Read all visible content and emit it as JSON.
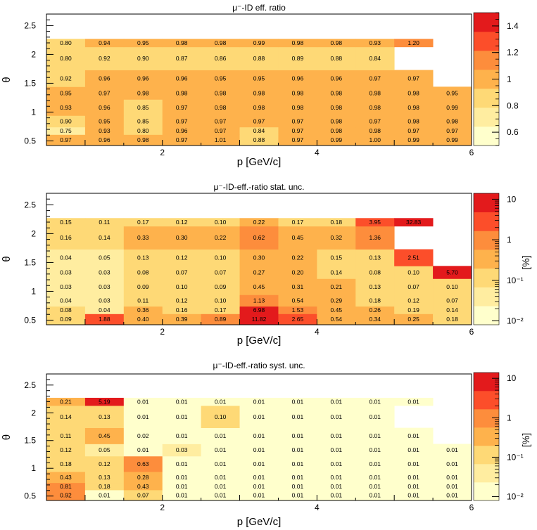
{
  "palette": [
    "#ffffcc",
    "#ffeda0",
    "#fed976",
    "#feb24c",
    "#fd8d3c",
    "#fc4e2a",
    "#e31a1c"
  ],
  "chart_data": [
    {
      "type": "heatmap",
      "title": "μ⁻-ID eff. ratio",
      "xlabel": "p [GeV/c]",
      "ylabel": "θ",
      "xlim": [
        0.5,
        6.0
      ],
      "ylim": [
        0.42,
        2.7
      ],
      "x_edges": [
        0.5,
        1.0,
        1.5,
        2.0,
        2.5,
        3.0,
        3.5,
        4.0,
        4.5,
        5.0,
        5.5,
        6.0
      ],
      "y_edges": [
        0.42,
        0.61,
        0.74,
        0.94,
        1.22,
        1.44,
        1.73,
        2.13,
        2.27,
        2.71
      ],
      "x_ticks": [
        2,
        4,
        6
      ],
      "x_tick_labels": [
        "2",
        "4",
        "6"
      ],
      "y_ticks": [
        0.5,
        1,
        1.5,
        2,
        2.5
      ],
      "y_tick_labels": [
        "0.5",
        "1",
        "1.5",
        "2",
        "2.5"
      ],
      "z_scale": "linear",
      "zlim": [
        0.5,
        1.5
      ],
      "z_ticks": [
        0.6,
        0.8,
        1,
        1.2,
        1.4
      ],
      "z_tick_labels": [
        "0.6",
        "0.8",
        "1",
        "1.2",
        "1.4"
      ],
      "z_unit": "",
      "values": [
        [
          0.97,
          0.96,
          0.98,
          0.97,
          1.01,
          0.88,
          0.97,
          0.99,
          1.0,
          0.99,
          0.99
        ],
        [
          0.75,
          0.93,
          0.8,
          0.96,
          0.97,
          0.84,
          0.97,
          0.98,
          0.98,
          0.97,
          0.97
        ],
        [
          0.9,
          0.95,
          0.85,
          0.97,
          0.97,
          0.97,
          0.97,
          0.98,
          0.97,
          0.98,
          0.98
        ],
        [
          0.93,
          0.96,
          0.85,
          0.97,
          0.98,
          0.98,
          0.98,
          0.98,
          0.98,
          0.98,
          0.99
        ],
        [
          0.95,
          0.97,
          0.98,
          0.98,
          0.98,
          0.98,
          0.98,
          0.98,
          0.98,
          0.98,
          0.95
        ],
        [
          0.92,
          0.96,
          0.96,
          0.96,
          0.95,
          0.95,
          0.96,
          0.96,
          0.97,
          0.97,
          null
        ],
        [
          0.8,
          0.92,
          0.9,
          0.87,
          0.86,
          0.88,
          0.89,
          0.88,
          0.84,
          null,
          null
        ],
        [
          0.8,
          0.94,
          0.95,
          0.98,
          0.98,
          0.99,
          0.98,
          0.98,
          0.93,
          1.2,
          null
        ]
      ],
      "labels": [
        [
          "0.97",
          "0.96",
          "0.98",
          "0.97",
          "1.01",
          "0.88",
          "0.97",
          "0.99",
          "1.00",
          "0.99",
          "0.99"
        ],
        [
          "0.75",
          "0.93",
          "0.80",
          "0.96",
          "0.97",
          "0.84",
          "0.97",
          "0.98",
          "0.98",
          "0.97",
          "0.97"
        ],
        [
          "0.90",
          "0.95",
          "0.85",
          "0.97",
          "0.97",
          "0.97",
          "0.97",
          "0.98",
          "0.97",
          "0.98",
          "0.98"
        ],
        [
          "0.93",
          "0.96",
          "0.85",
          "0.97",
          "0.98",
          "0.98",
          "0.98",
          "0.98",
          "0.98",
          "0.98",
          "0.99"
        ],
        [
          "0.95",
          "0.97",
          "0.98",
          "0.98",
          "0.98",
          "0.98",
          "0.98",
          "0.98",
          "0.98",
          "0.98",
          "0.95"
        ],
        [
          "0.92",
          "0.96",
          "0.96",
          "0.96",
          "0.95",
          "0.95",
          "0.96",
          "0.96",
          "0.97",
          "0.97",
          null
        ],
        [
          "0.80",
          "0.92",
          "0.90",
          "0.87",
          "0.86",
          "0.88",
          "0.89",
          "0.88",
          "0.84",
          null,
          null
        ],
        [
          "0.80",
          "0.94",
          "0.95",
          "0.98",
          "0.98",
          "0.99",
          "0.98",
          "0.98",
          "0.93",
          "1.20",
          null
        ]
      ]
    },
    {
      "type": "heatmap",
      "title": "μ⁻-ID-eff.-ratio stat. unc.",
      "xlabel": "p [GeV/c]",
      "ylabel": "θ",
      "xlim": [
        0.5,
        6.0
      ],
      "ylim": [
        0.42,
        2.7
      ],
      "x_edges": [
        0.5,
        1.0,
        1.5,
        2.0,
        2.5,
        3.0,
        3.5,
        4.0,
        4.5,
        5.0,
        5.5,
        6.0
      ],
      "y_edges": [
        0.42,
        0.61,
        0.74,
        0.94,
        1.22,
        1.44,
        1.73,
        2.13,
        2.27,
        2.71
      ],
      "x_ticks": [
        2,
        4,
        6
      ],
      "x_tick_labels": [
        "2",
        "4",
        "6"
      ],
      "y_ticks": [
        0.5,
        1,
        1.5,
        2,
        2.5
      ],
      "y_tick_labels": [
        "0.5",
        "1",
        "1.5",
        "2",
        "2.5"
      ],
      "z_scale": "log",
      "zlim": [
        0.008,
        14
      ],
      "z_ticks": [
        0.01,
        0.1,
        1,
        10
      ],
      "z_tick_labels": [
        "10⁻²",
        "10⁻¹",
        "1",
        "10"
      ],
      "z_unit": "[%]",
      "values": [
        [
          0.09,
          1.88,
          0.4,
          0.39,
          0.89,
          11.82,
          2.65,
          0.54,
          0.34,
          0.25,
          0.18
        ],
        [
          0.08,
          0.04,
          0.36,
          0.16,
          0.17,
          6.98,
          1.53,
          0.45,
          0.26,
          0.19,
          0.14
        ],
        [
          0.04,
          0.03,
          0.11,
          0.12,
          0.1,
          1.13,
          0.54,
          0.29,
          0.18,
          0.12,
          0.07
        ],
        [
          0.03,
          0.03,
          0.09,
          0.1,
          0.09,
          0.45,
          0.31,
          0.21,
          0.13,
          0.07,
          0.1
        ],
        [
          0.03,
          0.03,
          0.08,
          0.07,
          0.07,
          0.27,
          0.2,
          0.14,
          0.08,
          0.1,
          5.7
        ],
        [
          0.04,
          0.05,
          0.13,
          0.12,
          0.1,
          0.3,
          0.22,
          0.15,
          0.13,
          2.51,
          null
        ],
        [
          0.16,
          0.14,
          0.33,
          0.3,
          0.22,
          0.62,
          0.45,
          0.32,
          1.36,
          null,
          null
        ],
        [
          0.15,
          0.11,
          0.17,
          0.12,
          0.1,
          0.22,
          0.17,
          0.18,
          3.95,
          32.83,
          null
        ]
      ],
      "labels": [
        [
          "0.09",
          "1.88",
          "0.40",
          "0.39",
          "0.89",
          "11.82",
          "2.65",
          "0.54",
          "0.34",
          "0.25",
          "0.18"
        ],
        [
          "0.08",
          "0.04",
          "0.36",
          "0.16",
          "0.17",
          "6.98",
          "1.53",
          "0.45",
          "0.26",
          "0.19",
          "0.14"
        ],
        [
          "0.04",
          "0.03",
          "0.11",
          "0.12",
          "0.10",
          "1.13",
          "0.54",
          "0.29",
          "0.18",
          "0.12",
          "0.07"
        ],
        [
          "0.03",
          "0.03",
          "0.09",
          "0.10",
          "0.09",
          "0.45",
          "0.31",
          "0.21",
          "0.13",
          "0.07",
          "0.10"
        ],
        [
          "0.03",
          "0.03",
          "0.08",
          "0.07",
          "0.07",
          "0.27",
          "0.20",
          "0.14",
          "0.08",
          "0.10",
          "5.70"
        ],
        [
          "0.04",
          "0.05",
          "0.13",
          "0.12",
          "0.10",
          "0.30",
          "0.22",
          "0.15",
          "0.13",
          "2.51",
          null
        ],
        [
          "0.16",
          "0.14",
          "0.33",
          "0.30",
          "0.22",
          "0.62",
          "0.45",
          "0.32",
          "1.36",
          null,
          null
        ],
        [
          "0.15",
          "0.11",
          "0.17",
          "0.12",
          "0.10",
          "0.22",
          "0.17",
          "0.18",
          "3.95",
          "32.83",
          null
        ]
      ]
    },
    {
      "type": "heatmap",
      "title": "μ⁻-ID-eff.-ratio syst. unc.",
      "xlabel": "p [GeV/c]",
      "ylabel": "θ",
      "xlim": [
        0.5,
        6.0
      ],
      "ylim": [
        0.42,
        2.7
      ],
      "x_edges": [
        0.5,
        1.0,
        1.5,
        2.0,
        2.5,
        3.0,
        3.5,
        4.0,
        4.5,
        5.0,
        5.5,
        6.0
      ],
      "y_edges": [
        0.42,
        0.61,
        0.74,
        0.94,
        1.22,
        1.44,
        1.73,
        2.13,
        2.27,
        2.71
      ],
      "x_ticks": [
        2,
        4,
        6
      ],
      "x_tick_labels": [
        "2",
        "4",
        "6"
      ],
      "y_ticks": [
        0.5,
        1,
        1.5,
        2,
        2.5
      ],
      "y_tick_labels": [
        "0.5",
        "1",
        "1.5",
        "2",
        "2.5"
      ],
      "z_scale": "log",
      "zlim": [
        0.008,
        14
      ],
      "z_ticks": [
        0.01,
        0.1,
        1,
        10
      ],
      "z_tick_labels": [
        "10⁻²",
        "10⁻¹",
        "1",
        "10"
      ],
      "z_unit": "[%]",
      "values": [
        [
          0.92,
          0.01,
          0.07,
          0.01,
          0.01,
          0.01,
          0.01,
          0.01,
          0.01,
          0.01,
          0.01
        ],
        [
          0.81,
          0.18,
          0.43,
          0.01,
          0.01,
          0.01,
          0.01,
          0.01,
          0.01,
          0.01,
          0.01
        ],
        [
          0.43,
          0.13,
          0.28,
          0.01,
          0.01,
          0.01,
          0.01,
          0.01,
          0.01,
          0.01,
          0.01
        ],
        [
          0.18,
          0.12,
          0.63,
          0.01,
          0.01,
          0.01,
          0.01,
          0.01,
          0.01,
          0.01,
          0.01
        ],
        [
          0.12,
          0.05,
          0.01,
          0.03,
          0.01,
          0.01,
          0.01,
          0.01,
          0.01,
          0.01,
          0.01
        ],
        [
          0.11,
          0.45,
          0.02,
          0.01,
          0.01,
          0.01,
          0.01,
          0.01,
          0.01,
          0.01,
          null
        ],
        [
          0.14,
          0.13,
          0.01,
          0.01,
          0.1,
          0.01,
          0.01,
          0.01,
          0.01,
          null,
          null
        ],
        [
          0.21,
          5.19,
          0.01,
          0.01,
          0.01,
          0.01,
          0.01,
          0.01,
          0.01,
          0.01,
          null
        ]
      ],
      "labels": [
        [
          "0.92",
          "0.01",
          "0.07",
          "0.01",
          "0.01",
          "0.01",
          "0.01",
          "0.01",
          "0.01",
          "0.01",
          "0.01"
        ],
        [
          "0.81",
          "0.18",
          "0.43",
          "0.01",
          "0.01",
          "0.01",
          "0.01",
          "0.01",
          "0.01",
          "0.01",
          "0.01"
        ],
        [
          "0.43",
          "0.13",
          "0.28",
          "0.01",
          "0.01",
          "0.01",
          "0.01",
          "0.01",
          "0.01",
          "0.01",
          "0.01"
        ],
        [
          "0.18",
          "0.12",
          "0.63",
          "0.01",
          "0.01",
          "0.01",
          "0.01",
          "0.01",
          "0.01",
          "0.01",
          "0.01"
        ],
        [
          "0.12",
          "0.05",
          "0.01",
          "0.03",
          "0.01",
          "0.01",
          "0.01",
          "0.01",
          "0.01",
          "0.01",
          "0.01"
        ],
        [
          "0.11",
          "0.45",
          "0.02",
          "0.01",
          "0.01",
          "0.01",
          "0.01",
          "0.01",
          "0.01",
          "0.01",
          null
        ],
        [
          "0.14",
          "0.13",
          "0.01",
          "0.01",
          "0.10",
          "0.01",
          "0.01",
          "0.01",
          "0.01",
          null,
          null
        ],
        [
          "0.21",
          "5.19",
          "0.01",
          "0.01",
          "0.01",
          "0.01",
          "0.01",
          "0.01",
          "0.01",
          "0.01",
          null
        ]
      ]
    }
  ]
}
